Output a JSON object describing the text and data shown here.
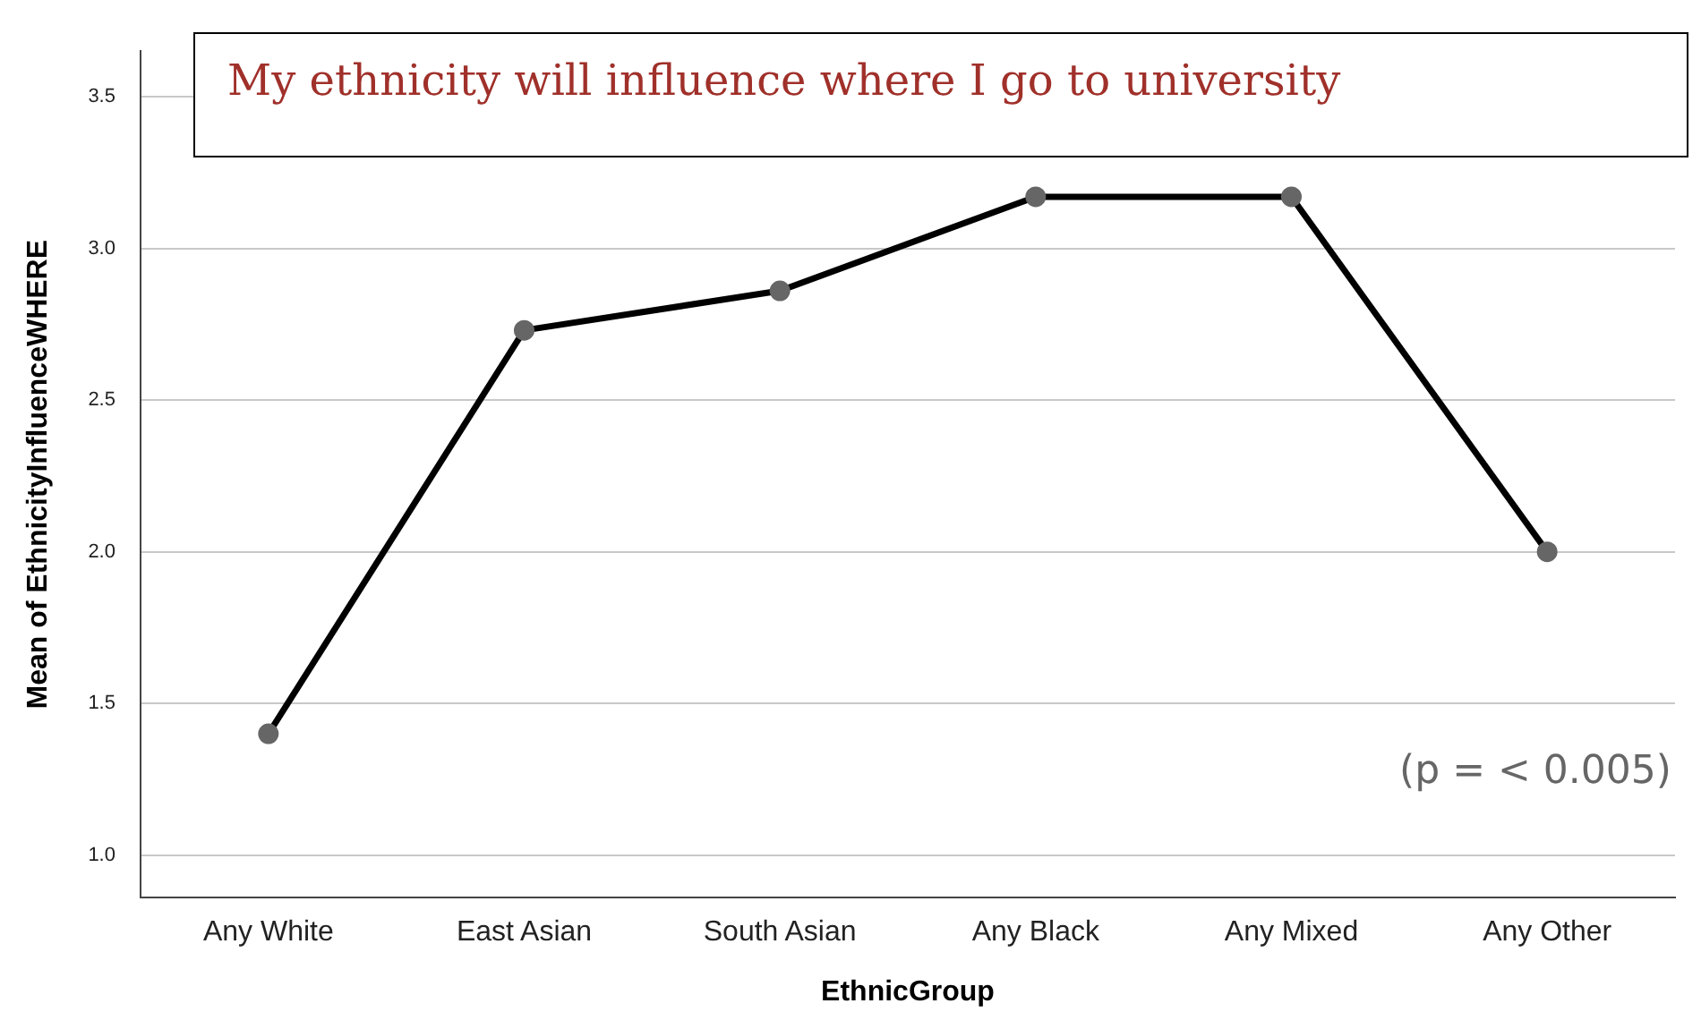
{
  "chart_data": {
    "type": "line",
    "title": "My ethnicity will influence where I go to university",
    "xlabel": "EthnicGroup",
    "ylabel": "Mean of EthnicityInfluenceWHERE",
    "categories": [
      "Any White",
      "East Asian",
      "South Asian",
      "Any Black",
      "Any Mixed",
      "Any Other"
    ],
    "series": [
      {
        "color": "#000000",
        "values": [
          1.4,
          2.73,
          2.86,
          3.17,
          3.17,
          2.0
        ]
      }
    ],
    "ylim": [
      0.86,
      3.65
    ],
    "yticks": [
      {
        "value": 1.0,
        "label": "1.0"
      },
      {
        "value": 1.5,
        "label": "1.5"
      },
      {
        "value": 2.0,
        "label": "2.0"
      },
      {
        "value": 2.5,
        "label": "2.5"
      },
      {
        "value": 3.0,
        "label": "3.0"
      },
      {
        "value": 3.5,
        "label": "3.5"
      }
    ],
    "grid": "y",
    "marker": "circle",
    "line_style": "solid",
    "legend": false,
    "annotations": [
      "(p = < 0.005)"
    ]
  }
}
